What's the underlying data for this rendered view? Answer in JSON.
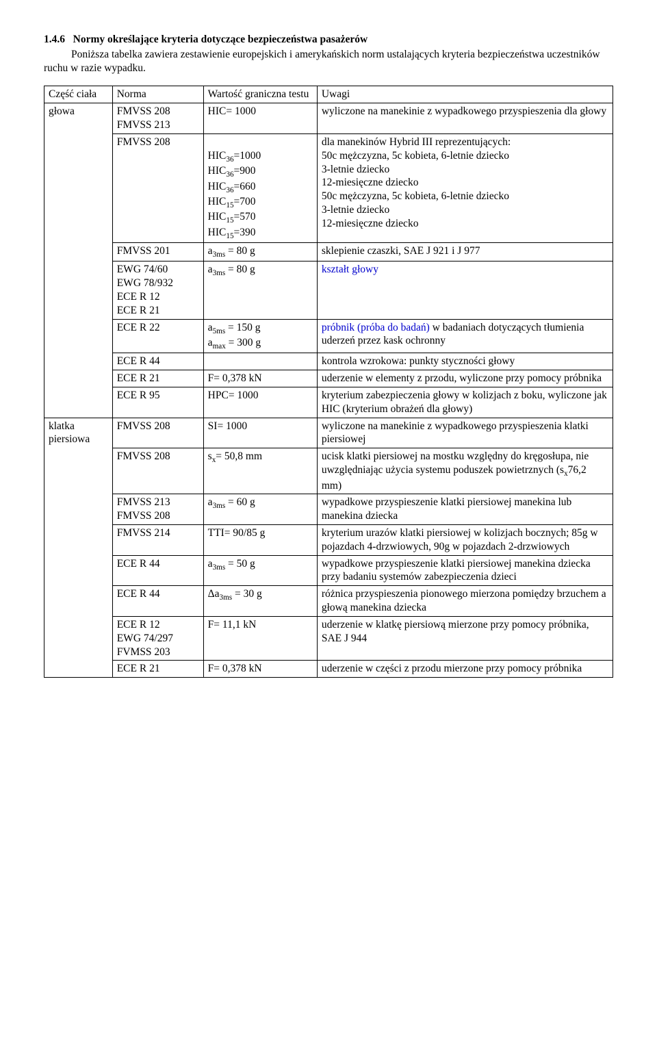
{
  "section_number": "1.4.6",
  "section_title": "Normy określające kryteria dotyczące bezpieczeństwa pasażerów",
  "intro": "Poniższa tabelka zawiera zestawienie europejskich i amerykańskich norm ustalających kryteria bezpieczeństwa uczestników ruchu w razie wypadku.",
  "headers": {
    "col0": "Część ciała",
    "col1": "Norma",
    "col2": "Wartość graniczna testu",
    "col3": "Uwagi"
  },
  "bodyparts": [
    {
      "label": "głowa",
      "rows": [
        {
          "norm": "FMVSS 208\nFMVSS 213",
          "val": "HIC= 1000",
          "note": "wyliczone na manekinie z wypadkowego przyspieszenia dla głowy"
        },
        {
          "norm": "FMVSS 208",
          "val_lines": [
            {
              "pre": "",
              "sym": "",
              "sub": "",
              "post": ""
            },
            {
              "pre": "HIC",
              "sym": "",
              "sub": "36",
              "post": "=1000"
            },
            {
              "pre": "HIC",
              "sym": "",
              "sub": "36",
              "post": "=900"
            },
            {
              "pre": "HIC",
              "sym": "",
              "sub": "36",
              "post": "=660"
            },
            {
              "pre": "HIC",
              "sym": "",
              "sub": "15",
              "post": "=700"
            },
            {
              "pre": "HIC",
              "sym": "",
              "sub": "15",
              "post": "=570"
            },
            {
              "pre": "HIC",
              "sym": "",
              "sub": "15",
              "post": "=390"
            }
          ],
          "note": "dla manekinów Hybrid III reprezentujących:\n50c mężczyzna, 5c kobieta, 6-letnie dziecko\n3-letnie dziecko\n12-miesięczne dziecko\n50c mężczyzna, 5c kobieta, 6-letnie dziecko\n3-letnie dziecko\n12-miesięczne dziecko"
        },
        {
          "norm": "FMVSS 201",
          "val_lines": [
            {
              "pre": "a",
              "sym": "",
              "sub": "3ms",
              "post": " = 80 g"
            }
          ],
          "note": "sklepienie czaszki, SAE J 921 i J 977"
        },
        {
          "norm": "EWG 74/60\nEWG 78/932\nECE R 12\nECE R 21",
          "val_lines": [
            {
              "pre": "a",
              "sym": "",
              "sub": "3ms",
              "post": " = 80 g"
            }
          ],
          "note": "kształt głowy",
          "note_blue": true
        },
        {
          "norm": "ECE R 22",
          "val_lines": [
            {
              "pre": "a",
              "sym": "",
              "sub": "5ms",
              "post": " = 150 g"
            },
            {
              "pre": "a",
              "sym": "",
              "sub": "max",
              "post": " = 300 g"
            }
          ],
          "note_parts": [
            {
              "text": "próbnik (próba do badań)",
              "blue": true
            },
            {
              "text": " w badaniach dotyczących tłumienia uderzeń przez kask ochronny",
              "blue": false
            }
          ]
        },
        {
          "norm": "ECE R 44",
          "val": "",
          "note": "kontrola wzrokowa: punkty styczności głowy"
        },
        {
          "norm": "ECE R 21",
          "val": "F= 0,378 kN",
          "note": "uderzenie w elementy z przodu, wyliczone przy pomocy próbnika"
        },
        {
          "norm": "ECE R 95",
          "val": "HPC= 1000",
          "note": "kryterium zabezpieczenia głowy w kolizjach z boku, wyliczone jak HIC (kryterium obrażeń dla głowy)"
        }
      ]
    },
    {
      "label": "klatka piersiowa",
      "rows": [
        {
          "norm": "FMVSS 208",
          "val": "SI= 1000",
          "note": "wyliczone na manekinie z wypadkowego przyspieszenia klatki piersiowej"
        },
        {
          "norm": "FMVSS 208",
          "val_lines": [
            {
              "pre": "s",
              "sym": "",
              "sub": "x",
              "post": "= 50,8 mm"
            }
          ],
          "note_parts": [
            {
              "text": "ucisk klatki piersiowej na mostku względny do kręgosłupa, nie uwzględniając użycia systemu poduszek powietrznych (s",
              "blue": false
            },
            {
              "text": "",
              "sub": "x"
            },
            {
              "text": "76,2 mm)",
              "blue": false
            }
          ]
        },
        {
          "norm": "FMVSS 213\nFMVSS 208",
          "val_lines": [
            {
              "pre": "a",
              "sym": "",
              "sub": "3ms",
              "post": " = 60 g"
            }
          ],
          "note": "wypadkowe przyspieszenie klatki piersiowej manekina lub manekina dziecka"
        },
        {
          "norm": "FMVSS 214",
          "val": "TTI= 90/85 g",
          "note": "kryterium urazów klatki piersiowej w kolizjach bocznych; 85g w pojazdach 4-drzwiowych, 90g w pojazdach 2-drzwiowych"
        },
        {
          "norm": "ECE R 44",
          "val_lines": [
            {
              "pre": "a",
              "sym": "",
              "sub": "3ms",
              "post": " = 50 g"
            }
          ],
          "note": "wypadkowe przyspieszenie klatki piersiowej manekina dziecka przy badaniu systemów zabezpieczenia dzieci"
        },
        {
          "norm": "ECE R 44",
          "val_lines": [
            {
              "pre": "Δa",
              "sym": "",
              "sub": "3ms",
              "post": " = 30 g"
            }
          ],
          "note": "różnica przyspieszenia pionowego mierzona pomiędzy brzuchem a głową manekina dziecka"
        },
        {
          "norm": "ECE R 12\nEWG 74/297\nFVMSS 203",
          "val": "F= 11,1 kN",
          "note": "uderzenie w klatkę piersiową mierzone przy pomocy próbnika, SAE J 944"
        },
        {
          "norm": "ECE R 21",
          "val": "F= 0,378 kN",
          "note": "uderzenie w części z przodu mierzone przy pomocy próbnika"
        }
      ]
    }
  ]
}
